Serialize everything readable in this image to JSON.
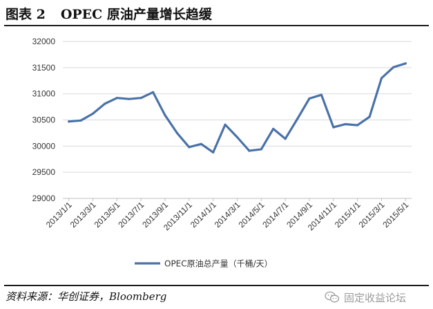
{
  "header": {
    "figure_label": "图表 2",
    "title": "OPEC 原油产量增长趋缓"
  },
  "source_line": "资料来源：华创证券，Bloomberg",
  "watermark": {
    "text": "固定收益论坛",
    "icon": "wechat-icon"
  },
  "colors": {
    "series": "#4a72a8",
    "grid": "#d9d9d9",
    "axis": "#bfbfbf",
    "rule": "#1a1a1a"
  },
  "chart_data": {
    "type": "line",
    "title": "",
    "xlabel": "",
    "ylabel": "",
    "ylim": [
      29000,
      32000
    ],
    "yticks": [
      "29000",
      "29500",
      "30000",
      "30500",
      "31000",
      "31500",
      "32000"
    ],
    "grid": true,
    "legend_position": "bottom",
    "x": [
      "2013/1/1",
      "2013/2/1",
      "2013/3/1",
      "2013/4/1",
      "2013/5/1",
      "2013/6/1",
      "2013/7/1",
      "2013/8/1",
      "2013/9/1",
      "2013/10/1",
      "2013/11/1",
      "2013/12/1",
      "2014/1/1",
      "2014/2/1",
      "2014/3/1",
      "2014/4/1",
      "2014/5/1",
      "2014/6/1",
      "2014/7/1",
      "2014/8/1",
      "2014/9/1",
      "2014/10/1",
      "2014/11/1",
      "2014/12/1",
      "2015/1/1",
      "2015/2/1",
      "2015/3/1",
      "2015/4/1",
      "2015/5/1"
    ],
    "xtick_labels": [
      "2013/1/1",
      "2013/3/1",
      "2013/5/1",
      "2013/7/1",
      "2013/9/1",
      "2013/11/1",
      "2014/1/1",
      "2014/3/1",
      "2014/5/1",
      "2014/7/1",
      "2014/9/1",
      "2014/11/1",
      "2015/1/1",
      "2015/3/1",
      "2015/5/1"
    ],
    "series": [
      {
        "name": "OPEC原油总产量（千桶/天）",
        "values": [
          30470,
          30490,
          30620,
          30810,
          30920,
          30900,
          30920,
          31030,
          30590,
          30250,
          29980,
          30040,
          29880,
          30410,
          30170,
          29910,
          29940,
          30330,
          30140,
          30520,
          30910,
          30980,
          30360,
          30420,
          30400,
          30560,
          31300,
          31510,
          31580
        ]
      }
    ]
  }
}
